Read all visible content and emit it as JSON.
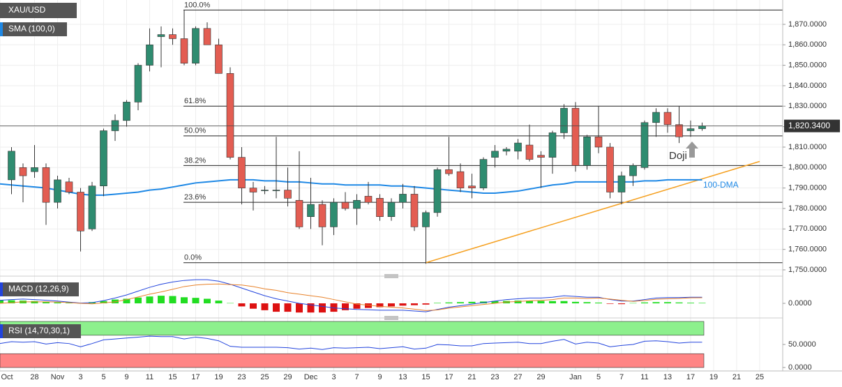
{
  "chart_data": [
    {
      "type": "candlestick",
      "legend": [
        "XAU/USD",
        "SMA (100,0)"
      ],
      "categories": [
        "Oct",
        null,
        null,
        "28",
        null,
        "Nov",
        null,
        "3",
        null,
        "5",
        null,
        "9",
        null,
        "11",
        null,
        "15",
        null,
        "17",
        null,
        "19",
        null,
        "23",
        null,
        "25",
        null,
        "29",
        null,
        "Dec",
        null,
        "3",
        null,
        "7",
        null,
        "9",
        null,
        "13",
        null,
        "15",
        null,
        "17",
        null,
        "21",
        null,
        "23",
        null,
        "27",
        null,
        "29",
        null,
        null,
        "Jan",
        null,
        "5",
        null,
        "7",
        null,
        "11",
        null,
        "13",
        null,
        "17",
        null,
        "19",
        null,
        "21",
        null,
        "25",
        null
      ],
      "open": [
        null,
        1794,
        1800,
        1798,
        1800,
        1783,
        1793,
        1788,
        1770,
        1791,
        1818,
        1823,
        1832,
        1850,
        1864,
        1865,
        1863,
        1851,
        1868,
        1860,
        1846,
        1805,
        1790,
        1789,
        1789,
        1789,
        1784,
        1776,
        1782,
        1771,
        1783,
        1780,
        1786,
        1785,
        1776,
        1783,
        1787,
        1771,
        1778,
        1799,
        1798,
        1791,
        1790,
        1805,
        1808,
        1808,
        1811,
        1806,
        1805,
        1817,
        1829,
        1801,
        1815,
        1810,
        1788,
        1796,
        1800,
        1822,
        1827,
        1821,
        1818,
        1819,
        null,
        null,
        null,
        null,
        null,
        null
      ],
      "high": [
        null,
        1810,
        1802,
        1811,
        1802,
        1796,
        1795,
        1790,
        1793,
        1819,
        1826,
        1833,
        1851,
        1868,
        1869,
        1868,
        1877,
        1869,
        1871,
        1863,
        1849,
        1810,
        1793,
        1791,
        1815,
        1800,
        1808,
        1795,
        1784,
        1785,
        1788,
        1787,
        1793,
        1787,
        1785,
        1792,
        1791,
        1779,
        1800,
        1815,
        1802,
        1797,
        1805,
        1811,
        1810,
        1814,
        1821,
        1808,
        1818,
        1831,
        1832,
        1816,
        1830,
        1812,
        1798,
        1802,
        1823,
        1829,
        1829,
        1830,
        1823,
        1822,
        null,
        null,
        null,
        null,
        null,
        null
      ],
      "low": [
        null,
        1787,
        1783,
        1795,
        1772,
        1780,
        1787,
        1759,
        1769,
        1786,
        1813,
        1820,
        1828,
        1847,
        1849,
        1860,
        1850,
        1850,
        1860,
        1846,
        1804,
        1782,
        1779,
        1787,
        1785,
        1781,
        1770,
        1770,
        1762,
        1767,
        1779,
        1772,
        1782,
        1774,
        1774,
        1780,
        1769,
        1753,
        1776,
        1796,
        1788,
        1785,
        1789,
        1800,
        1806,
        1804,
        1803,
        1790,
        1797,
        1814,
        1798,
        1799,
        1807,
        1785,
        1782,
        1791,
        1799,
        1815,
        1817,
        1812,
        1815,
        1818,
        null,
        null,
        null,
        null,
        null,
        null
      ],
      "close": [
        null,
        1808,
        1796,
        1800,
        1783,
        1794,
        1788,
        1769,
        1791,
        1818,
        1823,
        1832,
        1850,
        1860,
        1865,
        1863,
        1851,
        1868,
        1860,
        1846,
        1805,
        1790,
        1788,
        1789,
        1789,
        1785,
        1771,
        1782,
        1771,
        1783,
        1780,
        1784,
        1783,
        1776,
        1783,
        1787,
        1771,
        1778,
        1799,
        1797,
        1790,
        1790,
        1804,
        1808,
        1809,
        1812,
        1804,
        1805,
        1817,
        1829,
        1801,
        1815,
        1810,
        1788,
        1796,
        1801,
        1822,
        1827,
        1821,
        1815,
        1819,
        1820.34,
        null,
        null,
        null,
        null,
        null,
        null
      ],
      "up_color": "#2f8c70",
      "down_color": "#e35d52",
      "series": [
        {
          "name": "100-DMA",
          "color": "#1e88e5",
          "values": [
            1792,
            1791.5,
            1791,
            1790.5,
            1790,
            1789,
            1788,
            1787,
            1786.5,
            1786.5,
            1787,
            1787.5,
            1788,
            1789,
            1789.5,
            1790.5,
            1791.5,
            1792.5,
            1793,
            1793.5,
            1794,
            1794,
            1794,
            1793.5,
            1793.5,
            1793,
            1793,
            1792.5,
            1792,
            1792,
            1791.5,
            1791.5,
            1791.5,
            1791.5,
            1791,
            1791,
            1790.5,
            1790,
            1789.5,
            1789,
            1788.5,
            1788,
            1787.5,
            1787.5,
            1788,
            1788.5,
            1789.5,
            1790.5,
            1791.5,
            1792,
            1793,
            1793,
            1793,
            1793,
            1793,
            1793,
            1793.5,
            1793.5,
            1794,
            1794,
            1794,
            1794,
            null,
            null,
            null,
            null,
            null,
            null
          ]
        }
      ],
      "fib_levels": [
        {
          "value": 1877,
          "label": "100.0%"
        },
        {
          "value": 1830,
          "label": "61.8%"
        },
        {
          "value": 1815.5,
          "label": "50.0%"
        },
        {
          "value": 1801,
          "label": "38.2%"
        },
        {
          "value": 1783,
          "label": "23.6%"
        },
        {
          "value": 1753.5,
          "label": "0.0%"
        }
      ],
      "trendline": {
        "x": [
          37,
          66
        ],
        "values": [
          1753.5,
          1803
        ],
        "color": "#f5a020"
      },
      "last_price": {
        "value": 1820.34,
        "label": "1,820.3400"
      },
      "annotations": [
        "Doji"
      ],
      "ylim": [
        1748.3,
        1881.9
      ],
      "yticks": [
        {
          "value": 1750,
          "label": "1,750.0000"
        },
        {
          "value": 1760,
          "label": "1,760.0000"
        },
        {
          "value": 1770,
          "label": "1,770.0000"
        },
        {
          "value": 1780,
          "label": "1,780.0000"
        },
        {
          "value": 1790,
          "label": "1,790.0000"
        },
        {
          "value": 1800,
          "label": "1,800.0000"
        },
        {
          "value": 1810,
          "label": "1,810.0000"
        },
        {
          "value": 1820,
          "label": "1,820.0000"
        },
        {
          "value": 1830,
          "label": "1,830.0000"
        },
        {
          "value": 1840,
          "label": "1,840.0000"
        },
        {
          "value": 1850,
          "label": "1,850.0000"
        },
        {
          "value": 1860,
          "label": "1,860.0000"
        },
        {
          "value": 1870,
          "label": "1,870.0000"
        }
      ],
      "grid": true
    },
    {
      "type": "macd",
      "legend": "MACD (12,26,9)",
      "macd": [
        2,
        2.5,
        2.8,
        2.5,
        2,
        1.5,
        0.8,
        0.2,
        0.5,
        1.8,
        3.5,
        5.5,
        8,
        10.5,
        12.5,
        14,
        15,
        15.5,
        15.5,
        14.5,
        12.5,
        10,
        7.5,
        5,
        3,
        1.5,
        0,
        -1,
        -2,
        -3,
        -3.5,
        -4,
        -4.2,
        -4.5,
        -4.5,
        -4.5,
        -5,
        -5.5,
        -4,
        -2.5,
        -1.5,
        -0.5,
        0.5,
        1.5,
        2.5,
        3,
        3.5,
        3.5,
        4,
        5,
        4.5,
        4,
        4,
        2.5,
        1.5,
        1.5,
        2.5,
        3.5,
        3.8,
        3.8,
        4,
        4,
        null,
        null,
        null,
        null,
        null,
        null
      ],
      "signal": [
        0,
        0.5,
        1,
        1,
        1,
        0.9,
        0.5,
        0,
        -0.3,
        0.3,
        1,
        2.5,
        4.2,
        6,
        7.5,
        9.2,
        11,
        12,
        12.5,
        12.7,
        12.3,
        12,
        11,
        9.5,
        8.5,
        7,
        6,
        5,
        4,
        2.5,
        1,
        -0.5,
        -1.2,
        -2,
        -2.5,
        -3,
        -3.8,
        -4.7,
        -4.3,
        -3.1,
        -2.3,
        -1.5,
        -0.7,
        0,
        0.9,
        1.2,
        1.7,
        1.9,
        2.5,
        3.5,
        3.5,
        3.2,
        3.5,
        2.8,
        2,
        1.3,
        1.9,
        2.7,
        3,
        3.2,
        3.6,
        3.7,
        null,
        null,
        null,
        null,
        null,
        null
      ],
      "histogram": [
        2,
        2,
        1.8,
        1.5,
        1,
        0.6,
        0.3,
        0.2,
        0.8,
        1.5,
        2.5,
        3,
        3.8,
        4.5,
        5,
        4.8,
        4,
        3.6,
        3,
        1.8,
        0.2,
        -2,
        -3.5,
        -4.5,
        -5.5,
        -5.5,
        -6,
        -6,
        -6,
        -5.5,
        -4.5,
        -3.5,
        -3,
        -2.5,
        -2,
        -1.5,
        -1.2,
        -0.8,
        0.3,
        0.6,
        0.8,
        1,
        1.2,
        1.5,
        1.6,
        1.8,
        1.8,
        1.6,
        1.5,
        1.5,
        1,
        0.8,
        0.5,
        -0.3,
        -0.5,
        0.2,
        0.6,
        0.8,
        0.8,
        0.6,
        0.4,
        0.3,
        null,
        null,
        null,
        null,
        null,
        null
      ],
      "macd_color": "#2244dd",
      "signal_color": "#e8822a",
      "up_color": "#22dd22",
      "down_color": "#dd1111",
      "ylim": [
        -8.2,
        16
      ],
      "yticks": [
        {
          "value": 0,
          "label": "0.0000"
        }
      ]
    },
    {
      "type": "rsi",
      "legend": "RSI (14,70,30,1)",
      "values": [
        52,
        56,
        55,
        56,
        51,
        54,
        52,
        45,
        52,
        60,
        62,
        64,
        66,
        68,
        67,
        67,
        62,
        66,
        63,
        58,
        46,
        44,
        44,
        44,
        44,
        43,
        40,
        42,
        39,
        43,
        42,
        43,
        44,
        41,
        43,
        45,
        40,
        42,
        50,
        49,
        47,
        47,
        52,
        53,
        54,
        55,
        52,
        52,
        57,
        61,
        51,
        55,
        53,
        45,
        48,
        50,
        57,
        58,
        56,
        53,
        55,
        55,
        null,
        null,
        null,
        null,
        null,
        null
      ],
      "color": "#2244dd",
      "bands": [
        {
          "from": 70,
          "to": 100,
          "color": "#8df08d"
        },
        {
          "from": 0,
          "to": 30,
          "color": "#ff8585"
        }
      ],
      "ylim": [
        -4.5,
        101.5
      ],
      "yticks": [
        {
          "value": 50,
          "label": "50.0000"
        },
        {
          "value": 0,
          "label": "0.0000"
        }
      ]
    }
  ]
}
